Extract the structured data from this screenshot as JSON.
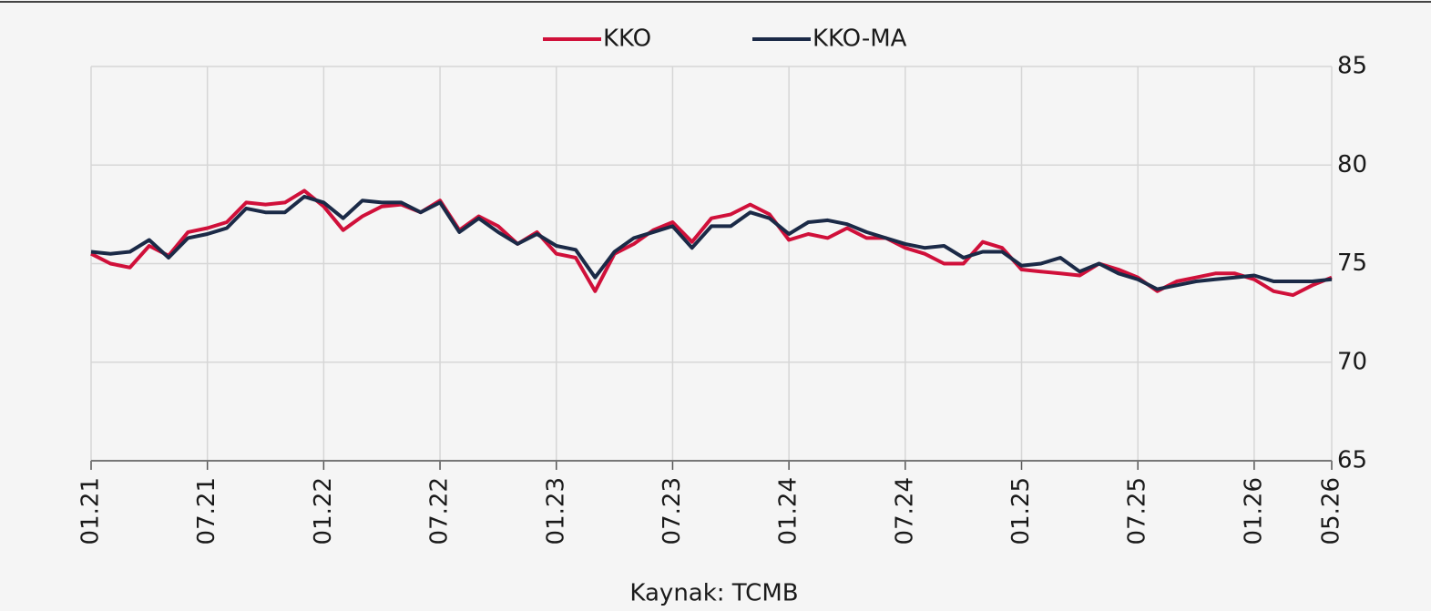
{
  "chart_data": {
    "type": "line",
    "categories": [
      "01.21",
      null,
      null,
      null,
      null,
      null,
      "07.21",
      null,
      null,
      null,
      null,
      null,
      "01.22",
      null,
      null,
      null,
      null,
      null,
      "07.22",
      null,
      null,
      null,
      null,
      null,
      "01.23",
      null,
      null,
      null,
      null,
      null,
      "07.23",
      null,
      null,
      null,
      null,
      null,
      "01.24",
      null,
      null,
      null,
      null,
      null,
      "07.24",
      null,
      null,
      null,
      null,
      null,
      "01.25",
      null,
      null,
      null,
      null,
      null,
      "07.25",
      null,
      null,
      null,
      null,
      null,
      "01.26",
      null,
      null,
      null,
      "05.26"
    ],
    "series": [
      {
        "name": "KKO",
        "color": "#d0103a",
        "values": [
          75.5,
          75.0,
          74.8,
          75.9,
          75.4,
          76.6,
          76.8,
          77.1,
          78.1,
          78.0,
          78.1,
          78.7,
          77.9,
          76.7,
          77.4,
          77.9,
          78.0,
          77.6,
          78.2,
          76.7,
          77.4,
          76.9,
          76.0,
          76.6,
          75.5,
          75.3,
          73.6,
          75.5,
          76.0,
          76.7,
          77.1,
          76.1,
          77.3,
          77.5,
          78.0,
          77.5,
          76.2,
          76.5,
          76.3,
          76.8,
          76.3,
          76.3,
          75.8,
          75.5,
          75.0,
          75.0,
          76.1,
          75.8,
          74.7,
          74.6,
          74.5,
          74.4,
          75.0,
          74.7,
          74.3,
          73.6,
          74.1,
          74.3,
          74.5,
          74.5,
          74.2,
          73.6,
          73.4,
          73.9,
          74.3
        ]
      },
      {
        "name": "KKO-MA",
        "color": "#1b2a47",
        "values": [
          75.6,
          75.5,
          75.6,
          76.2,
          75.3,
          76.3,
          76.5,
          76.8,
          77.8,
          77.6,
          77.6,
          78.4,
          78.1,
          77.3,
          78.2,
          78.1,
          78.1,
          77.6,
          78.1,
          76.6,
          77.3,
          76.6,
          76.0,
          76.5,
          75.9,
          75.7,
          74.3,
          75.6,
          76.3,
          76.6,
          76.9,
          75.8,
          76.9,
          76.9,
          77.6,
          77.3,
          76.5,
          77.1,
          77.2,
          77.0,
          76.6,
          76.3,
          76.0,
          75.8,
          75.9,
          75.3,
          75.6,
          75.6,
          74.9,
          75.0,
          75.3,
          74.6,
          75.0,
          74.5,
          74.2,
          73.7,
          73.9,
          74.1,
          74.2,
          74.3,
          74.4,
          74.1,
          74.1,
          74.1,
          74.2
        ]
      }
    ],
    "ylim": [
      65,
      85
    ],
    "yticks": [
      65,
      70,
      75,
      80,
      85
    ],
    "grid": true,
    "legend": "top",
    "source": "Kaynak: TCMB"
  }
}
